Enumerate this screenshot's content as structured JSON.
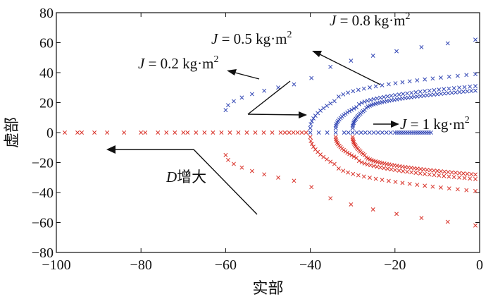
{
  "chart_data": {
    "type": "scatter",
    "xlabel": "实部",
    "ylabel": "虚部",
    "xlim": [
      -100,
      0
    ],
    "ylim": [
      -80,
      80
    ],
    "xticks": [
      -100,
      -80,
      -60,
      -40,
      -20,
      0
    ],
    "yticks": [
      -80,
      -60,
      -40,
      -20,
      0,
      20,
      40,
      60,
      80
    ],
    "xtick_labels": [
      "−100",
      "−80",
      "−60",
      "−40",
      "−20",
      "0"
    ],
    "ytick_labels": [
      "−80",
      "−60",
      "−40",
      "−20",
      "0",
      "20",
      "40",
      "60",
      "80"
    ],
    "grid": false,
    "marker": "x",
    "colors": {
      "blue": "#3347b5",
      "red": "#d9342b"
    },
    "curves": [
      {
        "J": 0.2,
        "start_x": -60,
        "start_y": 15,
        "peak_x": -40,
        "end_x": -1,
        "end_y": 62,
        "n": 16
      },
      {
        "J": 0.5,
        "start_x": -40,
        "start_y": 3,
        "peak_x": -34,
        "end_x": -1,
        "end_y": 39,
        "n": 32
      },
      {
        "J": 0.8,
        "start_x": -34,
        "start_y": 3,
        "peak_x": -29,
        "end_x": -1,
        "end_y": 31,
        "n": 44
      },
      {
        "J": 1.0,
        "start_x": -30,
        "start_y": 3,
        "peak_x": -27,
        "end_x": -1,
        "end_y": 28,
        "n": 52
      }
    ],
    "real_axis": {
      "red_x": [
        -98,
        -95,
        -94,
        -91,
        -88,
        -84,
        -80,
        -79,
        -76,
        -74,
        -72,
        -70,
        -69,
        -67,
        -65,
        -63,
        -61,
        -59,
        -57,
        -55,
        -53,
        -51,
        -49,
        -47,
        -46,
        -45,
        -44,
        -43,
        -42,
        -41
      ],
      "blue_x": [
        -40,
        -38,
        -36,
        -34,
        -32,
        -31,
        -30,
        -29,
        -28,
        -27,
        -26,
        -25,
        -24,
        -23,
        -22,
        -21,
        -20,
        -19.5,
        -19,
        -18.5,
        -18,
        -17.5,
        -17,
        -16.5,
        -16,
        -15.5,
        -15,
        -14.5,
        -14,
        -13.5,
        -13,
        -12.5,
        -12,
        -11.5
      ]
    },
    "annotations": [
      {
        "id": "j02",
        "prefix": "J",
        "text": " = 0.2 kg·m",
        "sup": "2"
      },
      {
        "id": "j05",
        "prefix": "J",
        "text": " = 0.5 kg·m",
        "sup": "2"
      },
      {
        "id": "j08",
        "prefix": "J",
        "text": " = 0.8 kg·m",
        "sup": "2"
      },
      {
        "id": "j1",
        "prefix": "J",
        "text": " = 1 kg·m",
        "sup": "2"
      },
      {
        "id": "d",
        "prefix": "D",
        "text": "增大",
        "sup": ""
      }
    ]
  }
}
